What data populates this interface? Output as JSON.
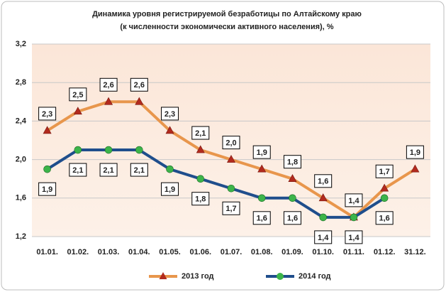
{
  "chart_data": {
    "type": "line",
    "title": [
      "Динамика уровня регистрируемой безработицы по Алтайскому краю",
      "(к численности экономически активного населения), %"
    ],
    "categories": [
      "01.01.",
      "01.02.",
      "01.03.",
      "01.04.",
      "01.05.",
      "01.06.",
      "01.07.",
      "01.08.",
      "01.09.",
      "01.10.",
      "01.11.",
      "01.12.",
      "31.12."
    ],
    "series": [
      {
        "name": "2013 год",
        "color": "#e8964c",
        "marker_color": "#b22a1e",
        "marker": "triangle",
        "values": [
          2.3,
          2.5,
          2.6,
          2.6,
          2.3,
          2.1,
          2.0,
          1.9,
          1.8,
          1.6,
          1.4,
          1.7,
          1.9
        ],
        "value_labels": [
          "2,3",
          "2,5",
          "2,6",
          "2,6",
          "2,3",
          "2,1",
          "2,0",
          "1,9",
          "1,8",
          "1,6",
          "1,4",
          "1,7",
          "1,9"
        ]
      },
      {
        "name": "2014 год",
        "color": "#1f4e8c",
        "marker_color": "#3cb44a",
        "marker": "circle",
        "values": [
          1.9,
          2.1,
          2.1,
          2.1,
          1.9,
          1.8,
          1.7,
          1.6,
          1.6,
          1.4,
          1.4,
          1.6,
          null
        ],
        "value_labels": [
          "1,9",
          "2,1",
          "2,1",
          "2,1",
          "1,9",
          "1,8",
          "1,7",
          "1,6",
          "1,6",
          "1,4",
          "1,4",
          "1,6",
          null
        ]
      }
    ],
    "ylim": [
      1.2,
      3.2
    ],
    "yticks": [
      {
        "value": 1.2,
        "label": "1,2"
      },
      {
        "value": 1.6,
        "label": "1,6"
      },
      {
        "value": 2.0,
        "label": "2,0"
      },
      {
        "value": 2.4,
        "label": "2,4"
      },
      {
        "value": 2.8,
        "label": "2,8"
      },
      {
        "value": 3.2,
        "label": "3,2"
      }
    ],
    "grid": true,
    "legend": "bottom"
  }
}
